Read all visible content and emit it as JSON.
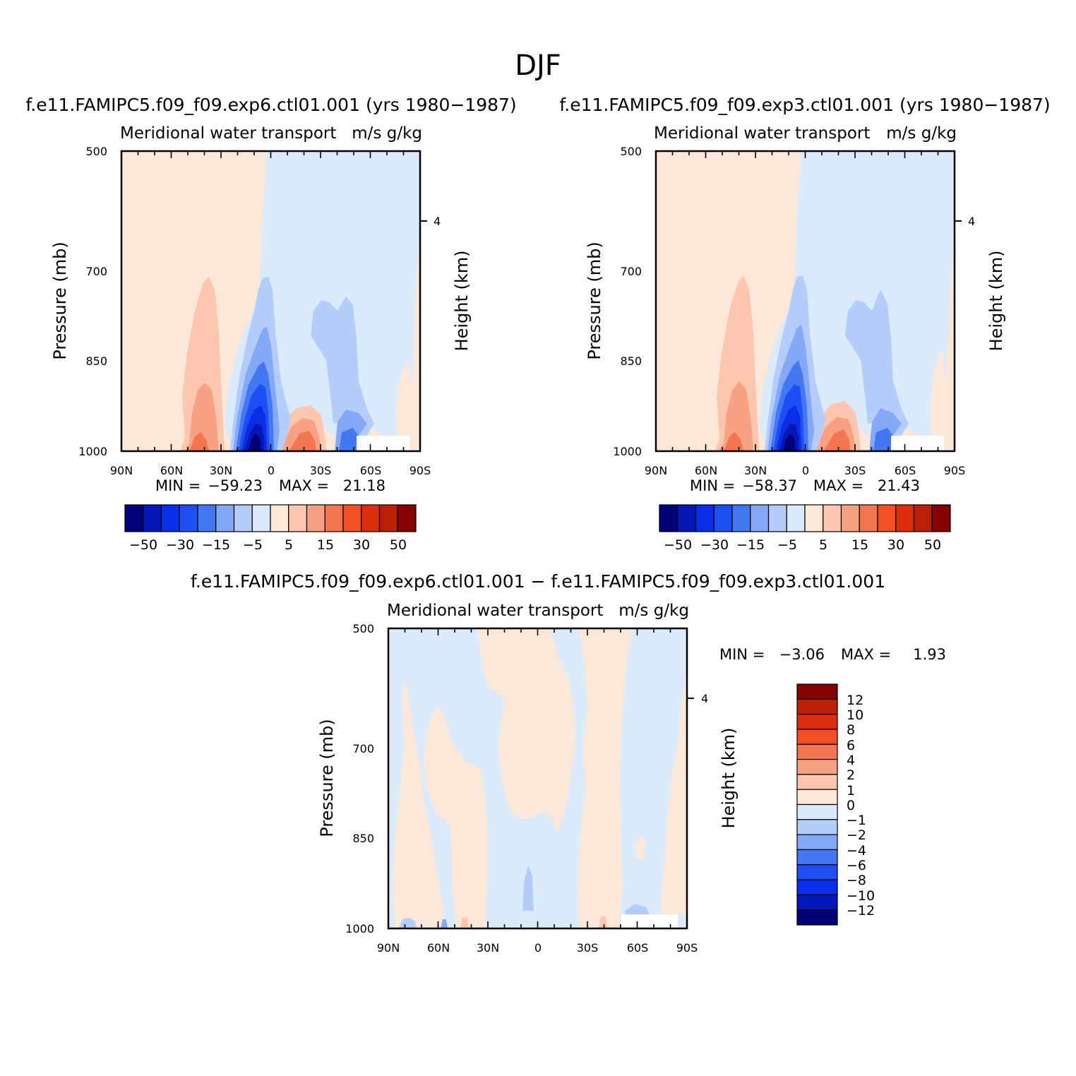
{
  "figure": {
    "title": "DJF",
    "colors": {
      "levels_palette": [
        "#00007a",
        "#0518b6",
        "#0a2ee6",
        "#1e4ff5",
        "#4478f2",
        "#86a8f9",
        "#b4cdfd",
        "#d9ebfc",
        "#fde8d8",
        "#fcc7ae",
        "#f9a283",
        "#f47650",
        "#f24f24",
        "#dd2d10",
        "#b91f05",
        "#850000"
      ]
    }
  },
  "chart_data": [
    {
      "type": "contour",
      "panel": "top-left",
      "title": "f.e11.FAMIPC5.f09_f09.exp6.ctl01.001 (yrs 1980−1987)",
      "subtitle_left": "Meridional water transport",
      "subtitle_right": "m/s g/kg",
      "ylabel": "Pressure (mb)",
      "ylabel_right": "Height (km)",
      "x_ticks": [
        "90N",
        "60N",
        "30N",
        "0",
        "30S",
        "60S",
        "90S"
      ],
      "y_ticks": [
        "500",
        "700",
        "850",
        "1000"
      ],
      "y_right_ticks": [
        "4"
      ],
      "xlim": [
        90,
        -90
      ],
      "ylim": [
        1000,
        500
      ],
      "stats": {
        "min_label": "MIN =",
        "min": "−59.23",
        "max_label": "MAX =",
        "max": "21.18"
      },
      "colorbar": {
        "orientation": "horizontal",
        "levels": [
          -60,
          -50,
          -40,
          -30,
          -20,
          -15,
          -10,
          -5,
          0,
          5,
          10,
          15,
          20,
          30,
          40,
          50,
          60
        ],
        "tick_labels": [
          "−50",
          "−30",
          "−15",
          "−5",
          "5",
          "15",
          "30",
          "50"
        ]
      }
    },
    {
      "type": "contour",
      "panel": "top-right",
      "title": "f.e11.FAMIPC5.f09_f09.exp3.ctl01.001 (yrs 1980−1987)",
      "subtitle_left": "Meridional water transport",
      "subtitle_right": "m/s g/kg",
      "ylabel": "Pressure (mb)",
      "ylabel_right": "Height (km)",
      "x_ticks": [
        "90N",
        "60N",
        "30N",
        "0",
        "30S",
        "60S",
        "90S"
      ],
      "y_ticks": [
        "500",
        "700",
        "850",
        "1000"
      ],
      "y_right_ticks": [
        "4"
      ],
      "xlim": [
        90,
        -90
      ],
      "ylim": [
        1000,
        500
      ],
      "stats": {
        "min_label": "MIN =",
        "min": "−58.37",
        "max_label": "MAX =",
        "max": "21.43"
      },
      "colorbar": {
        "orientation": "horizontal",
        "levels": [
          -60,
          -50,
          -40,
          -30,
          -20,
          -15,
          -10,
          -5,
          0,
          5,
          10,
          15,
          20,
          30,
          40,
          50,
          60
        ],
        "tick_labels": [
          "−50",
          "−30",
          "−15",
          "−5",
          "5",
          "15",
          "30",
          "50"
        ]
      }
    },
    {
      "type": "contour",
      "panel": "bottom-difference",
      "title": "f.e11.FAMIPC5.f09_f09.exp6.ctl01.001 − f.e11.FAMIPC5.f09_f09.exp3.ctl01.001",
      "subtitle_left": "Meridional water transport",
      "subtitle_right": "m/s g/kg",
      "ylabel": "Pressure (mb)",
      "ylabel_right": "Height (km)",
      "x_ticks": [
        "90N",
        "60N",
        "30N",
        "0",
        "30S",
        "60S",
        "90S"
      ],
      "y_ticks": [
        "500",
        "700",
        "850",
        "1000"
      ],
      "y_right_ticks": [
        "4"
      ],
      "xlim": [
        90,
        -90
      ],
      "ylim": [
        1000,
        500
      ],
      "stats": {
        "min_label": "MIN =",
        "min": "−3.06",
        "max_label": "MAX =",
        "max": "1.93"
      },
      "colorbar": {
        "orientation": "vertical",
        "tick_labels": [
          "12",
          "10",
          "8",
          "6",
          "4",
          "2",
          "1",
          "0",
          "−1",
          "−2",
          "−4",
          "−6",
          "−8",
          "−10",
          "−12"
        ]
      }
    }
  ]
}
